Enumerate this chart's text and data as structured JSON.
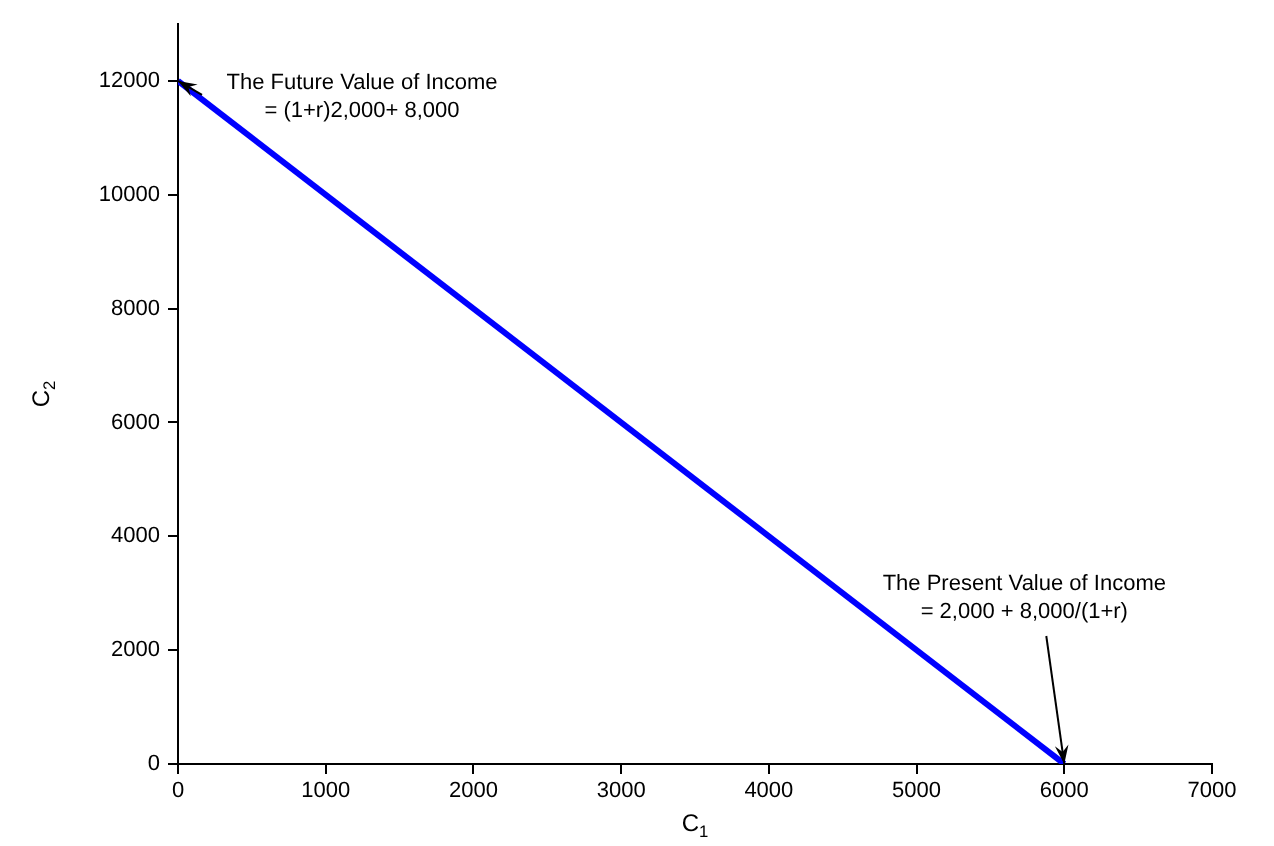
{
  "chart_data": {
    "type": "line",
    "xlabel": "C$_{1}$",
    "ylabel": "C$_{2}$",
    "series": [
      {
        "color": "#0000ff",
        "x": [
          0,
          6000
        ],
        "values": [
          12000,
          0
        ]
      }
    ],
    "xlim": [
      0,
      7000
    ],
    "xticks": [
      0,
      1000,
      2000,
      3000,
      4000,
      5000,
      6000,
      7000
    ],
    "ylim": [
      0,
      13000
    ],
    "yticks": [
      0,
      2000,
      4000,
      6000,
      8000,
      10000,
      12000
    ],
    "grid": false,
    "legend": false,
    "marker": "none",
    "line_style": "solid",
    "annotations": [
      {
        "text": "The Future Value of Income\n= (1+r)2,000+ 8,000",
        "x": 0,
        "y": 12000
      },
      {
        "text": "The Present Value of Income\n= 2,000 + 8,000/(1+r)",
        "x": 6000,
        "y": 0
      }
    ]
  }
}
